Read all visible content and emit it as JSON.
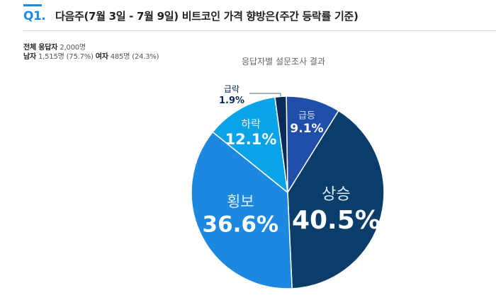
{
  "question": {
    "number": "Q1.",
    "title": "다음주(7월 3일 - 7월 9일)  비트코인 가격 향방은(주간 등락률 기준)"
  },
  "respondents": {
    "total_label": "전체 응답자",
    "total_value": "2,000명",
    "male_label": "남자",
    "male_value": "1,515명 (75.7%)",
    "female_label": "여자",
    "female_value": "485명 (24.3%)"
  },
  "chart_data": {
    "type": "pie",
    "title": "응답자별 설문조사 결과",
    "categories": [
      "상승",
      "급등",
      "급락",
      "하락",
      "횡보"
    ],
    "values": [
      40.5,
      9.1,
      1.9,
      12.1,
      36.6
    ],
    "value_labels": [
      "40.5%",
      "9.1%",
      "1.9%",
      "12.1%",
      "36.6%"
    ],
    "slice_order_clockwise_from_top": [
      "급등",
      "상승",
      "횡보",
      "하락",
      "급락"
    ],
    "colors": {
      "상승": "#0b3d6b",
      "급등": "#1f4fa8",
      "급락": "#0a2a5a",
      "하락": "#0aa3e8",
      "횡보": "#1d88e0"
    },
    "accent_color": "#1a8be0"
  }
}
